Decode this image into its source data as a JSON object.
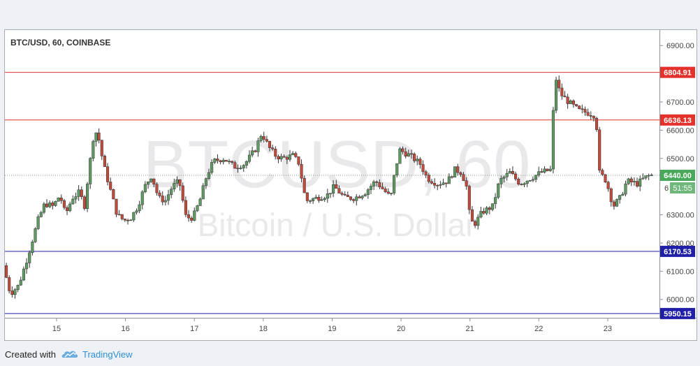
{
  "chart_data": {
    "type": "candlestick",
    "title": "BTC/USD, 60, COINBASE",
    "watermark": {
      "symbol": "BTCUSD, 60",
      "description": "Bitcoin / U.S. Dollar"
    },
    "x_ticks": [
      {
        "label": "15",
        "t": 0.75
      },
      {
        "label": "16",
        "t": 1.75
      },
      {
        "label": "17",
        "t": 2.75
      },
      {
        "label": "18",
        "t": 3.75
      },
      {
        "label": "19",
        "t": 4.75
      },
      {
        "label": "20",
        "t": 5.75
      },
      {
        "label": "21",
        "t": 6.75
      },
      {
        "label": "22",
        "t": 7.75
      },
      {
        "label": "23",
        "t": 8.75
      }
    ],
    "y_ticks": [
      {
        "label": "6900.00",
        "value": 6900
      },
      {
        "label": "6700.00",
        "value": 6700
      },
      {
        "label": "6600.00",
        "value": 6600
      },
      {
        "label": "6500.00",
        "value": 6500
      },
      {
        "label": "6300.00",
        "value": 6300
      },
      {
        "label": "6200.00",
        "value": 6200
      },
      {
        "label": "6100.00",
        "value": 6100
      },
      {
        "label": "6000.00",
        "value": 6000
      }
    ],
    "ylim": [
      5935,
      6955
    ],
    "resistance_lines": [
      {
        "label": "6804.91",
        "value": 6804.91,
        "color": "#e5312b"
      },
      {
        "label": "6636.13",
        "value": 6636.13,
        "color": "#e5312b"
      }
    ],
    "support_lines": [
      {
        "label": "6170.53",
        "value": 6170.53,
        "color": "#1f1fa8"
      },
      {
        "label": "5950.15",
        "value": 5950.15,
        "color": "#1f1fa8"
      }
    ],
    "last_price": {
      "label": "6440.00",
      "value": 6440,
      "color": "#49a85a"
    },
    "countdown": {
      "label": "51:55",
      "prefix": "6"
    },
    "colors": {
      "up": "#5f9a63",
      "down": "#c14a3c",
      "wick": "#333333"
    },
    "anchors": [
      {
        "t": 0.0,
        "v": 6120
      },
      {
        "t": 0.1,
        "v": 6020
      },
      {
        "t": 0.22,
        "v": 6050
      },
      {
        "t": 0.35,
        "v": 6150
      },
      {
        "t": 0.5,
        "v": 6280
      },
      {
        "t": 0.6,
        "v": 6340
      },
      {
        "t": 0.72,
        "v": 6330
      },
      {
        "t": 0.82,
        "v": 6370
      },
      {
        "t": 0.9,
        "v": 6300
      },
      {
        "t": 1.0,
        "v": 6360
      },
      {
        "t": 1.1,
        "v": 6380
      },
      {
        "t": 1.18,
        "v": 6330
      },
      {
        "t": 1.22,
        "v": 6420
      },
      {
        "t": 1.3,
        "v": 6570
      },
      {
        "t": 1.36,
        "v": 6600
      },
      {
        "t": 1.45,
        "v": 6480
      },
      {
        "t": 1.55,
        "v": 6390
      },
      {
        "t": 1.65,
        "v": 6300
      },
      {
        "t": 1.75,
        "v": 6280
      },
      {
        "t": 1.85,
        "v": 6290
      },
      {
        "t": 1.95,
        "v": 6330
      },
      {
        "t": 2.05,
        "v": 6400
      },
      {
        "t": 2.15,
        "v": 6440
      },
      {
        "t": 2.25,
        "v": 6360
      },
      {
        "t": 2.35,
        "v": 6350
      },
      {
        "t": 2.45,
        "v": 6400
      },
      {
        "t": 2.55,
        "v": 6420
      },
      {
        "t": 2.65,
        "v": 6290
      },
      {
        "t": 2.75,
        "v": 6290
      },
      {
        "t": 2.85,
        "v": 6350
      },
      {
        "t": 2.95,
        "v": 6440
      },
      {
        "t": 3.05,
        "v": 6490
      },
      {
        "t": 3.2,
        "v": 6500
      },
      {
        "t": 3.35,
        "v": 6470
      },
      {
        "t": 3.5,
        "v": 6480
      },
      {
        "t": 3.65,
        "v": 6530
      },
      {
        "t": 3.75,
        "v": 6590
      },
      {
        "t": 3.85,
        "v": 6540
      },
      {
        "t": 3.95,
        "v": 6510
      },
      {
        "t": 4.05,
        "v": 6500
      },
      {
        "t": 4.2,
        "v": 6510
      },
      {
        "t": 4.3,
        "v": 6480
      },
      {
        "t": 4.35,
        "v": 6390
      },
      {
        "t": 4.4,
        "v": 6350
      },
      {
        "t": 4.55,
        "v": 6360
      },
      {
        "t": 4.7,
        "v": 6370
      },
      {
        "t": 4.8,
        "v": 6400
      },
      {
        "t": 4.95,
        "v": 6360
      },
      {
        "t": 5.1,
        "v": 6360
      },
      {
        "t": 5.25,
        "v": 6380
      },
      {
        "t": 5.4,
        "v": 6420
      },
      {
        "t": 5.55,
        "v": 6380
      },
      {
        "t": 5.62,
        "v": 6360
      },
      {
        "t": 5.68,
        "v": 6450
      },
      {
        "t": 5.75,
        "v": 6530
      },
      {
        "t": 5.9,
        "v": 6510
      },
      {
        "t": 6.05,
        "v": 6480
      },
      {
        "t": 6.15,
        "v": 6430
      },
      {
        "t": 6.3,
        "v": 6410
      },
      {
        "t": 6.45,
        "v": 6420
      },
      {
        "t": 6.55,
        "v": 6460
      },
      {
        "t": 6.65,
        "v": 6450
      },
      {
        "t": 6.72,
        "v": 6400
      },
      {
        "t": 6.76,
        "v": 6310
      },
      {
        "t": 6.82,
        "v": 6260
      },
      {
        "t": 6.95,
        "v": 6310
      },
      {
        "t": 7.1,
        "v": 6330
      },
      {
        "t": 7.2,
        "v": 6420
      },
      {
        "t": 7.35,
        "v": 6450
      },
      {
        "t": 7.5,
        "v": 6410
      },
      {
        "t": 7.65,
        "v": 6430
      },
      {
        "t": 7.8,
        "v": 6450
      },
      {
        "t": 7.95,
        "v": 6460
      },
      {
        "t": 8.0,
        "v": 6800
      },
      {
        "t": 8.08,
        "v": 6730
      },
      {
        "t": 8.2,
        "v": 6700
      },
      {
        "t": 8.35,
        "v": 6670
      },
      {
        "t": 8.5,
        "v": 6660
      },
      {
        "t": 8.6,
        "v": 6650
      },
      {
        "t": 8.65,
        "v": 6450
      },
      {
        "t": 8.75,
        "v": 6420
      },
      {
        "t": 8.85,
        "v": 6330
      },
      {
        "t": 8.95,
        "v": 6360
      },
      {
        "t": 9.05,
        "v": 6420
      },
      {
        "t": 9.2,
        "v": 6410
      },
      {
        "t": 9.3,
        "v": 6430
      },
      {
        "t": 9.38,
        "v": 6440
      }
    ],
    "xlim": [
      0,
      9.42
    ]
  }
}
